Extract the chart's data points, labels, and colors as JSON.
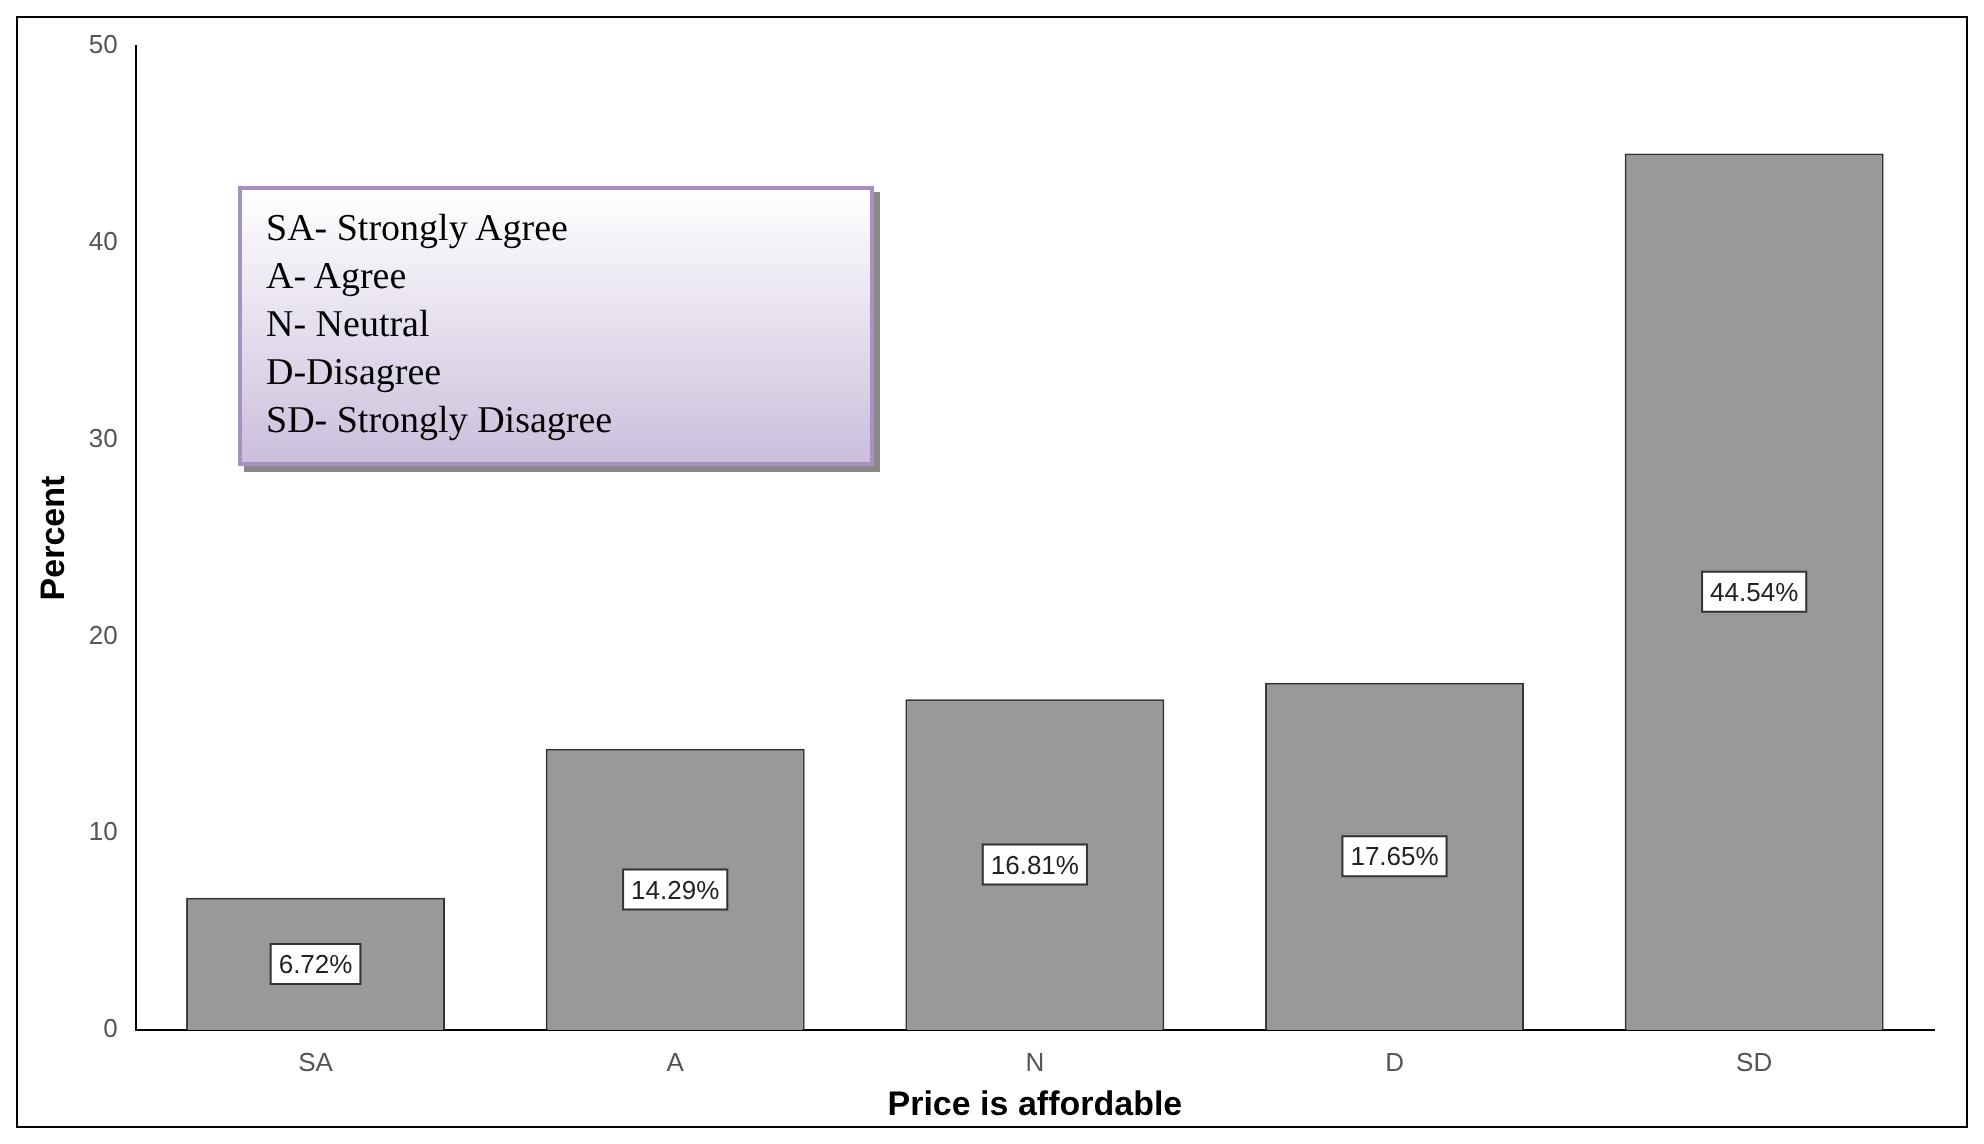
{
  "chart_data": {
    "type": "bar",
    "xlabel": "Price is affordable",
    "ylabel": "Percent",
    "categories": [
      "SA",
      "A",
      "N",
      "D",
      "SD"
    ],
    "values": [
      6.72,
      14.29,
      16.81,
      17.65,
      44.54
    ],
    "value_labels": [
      "6.72%",
      "14.29%",
      "16.81%",
      "17.65%",
      "44.54%"
    ],
    "color": "#999999",
    "ylim": [
      0,
      50
    ],
    "yticks": [
      0,
      10,
      20,
      30,
      40,
      50
    ],
    "grid": false,
    "legend": false,
    "annotations": [
      "SA- Strongly Agree",
      "A- Agree",
      "N- Neutral",
      "D-Disagree",
      "SD- Strongly Disagree"
    ]
  }
}
